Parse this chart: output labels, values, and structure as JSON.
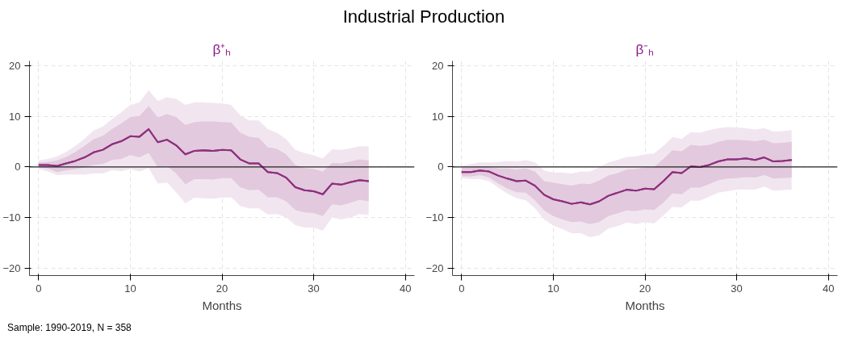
{
  "chart_data": [
    {
      "type": "line",
      "title": "β⁺ₕ",
      "xlabel": "Months",
      "annotations": [
        "Industrial Production",
        "Sample: 1990-2019, N = 358"
      ],
      "x": [
        0,
        1,
        2,
        3,
        4,
        5,
        6,
        7,
        8,
        9,
        10,
        11,
        12,
        13,
        14,
        15,
        16,
        17,
        18,
        19,
        20,
        21,
        22,
        23,
        24,
        25,
        26,
        27,
        28,
        29,
        30,
        31,
        32,
        33,
        34,
        35,
        36
      ],
      "xlim": [
        -1,
        41
      ],
      "xticks": [
        0,
        10,
        20,
        30,
        40
      ],
      "ylim": [
        -21.5,
        21
      ],
      "yticks": [
        -20,
        -10,
        0,
        10,
        20
      ],
      "grid": true,
      "ref_lines": [
        {
          "axis": "y",
          "value": 0,
          "label": null,
          "color": "#222222"
        }
      ],
      "series": [
        {
          "color": "#8e2f7e",
          "values": [
            0.4,
            0.4,
            0.2,
            0.7,
            1.2,
            1.9,
            2.9,
            3.4,
            4.5,
            5.1,
            6.1,
            6.0,
            7.5,
            4.9,
            5.4,
            4.3,
            2.5,
            3.2,
            3.3,
            3.2,
            3.4,
            3.3,
            1.5,
            0.7,
            0.7,
            -1.0,
            -1.2,
            -2.1,
            -4.0,
            -4.6,
            -4.8,
            -5.4,
            -3.3,
            -3.5,
            -3.0,
            -2.6,
            -2.8
          ],
          "upper": [
            1.3,
            1.6,
            2.1,
            3.0,
            4.2,
            5.6,
            7.2,
            8.0,
            9.5,
            10.8,
            12.3,
            12.8,
            15.2,
            13.1,
            13.8,
            13.5,
            12.3,
            12.8,
            12.8,
            12.7,
            12.6,
            12.3,
            10.2,
            9.2,
            9.2,
            7.5,
            6.8,
            5.5,
            3.4,
            2.8,
            2.3,
            1.7,
            3.5,
            3.4,
            3.7,
            4.1,
            4.1
          ],
          "lower": [
            -0.4,
            -0.9,
            -1.6,
            -1.5,
            -1.5,
            -1.5,
            -1.3,
            -1.3,
            -0.6,
            -0.8,
            -0.4,
            -0.9,
            -0.2,
            -3.3,
            -3.1,
            -5.0,
            -7.2,
            -6.1,
            -6.2,
            -6.3,
            -6.1,
            -6.0,
            -7.7,
            -8.2,
            -8.2,
            -9.4,
            -9.3,
            -10.0,
            -11.5,
            -12.0,
            -12.0,
            -12.6,
            -10.0,
            -10.4,
            -10.0,
            -9.3,
            -9.5
          ]
        },
        {
          "color": "#8e2f7e",
          "values": [
            0.4,
            0.4,
            0.2,
            0.7,
            1.2,
            1.9,
            2.9,
            3.4,
            4.5,
            5.1,
            6.1,
            6.0,
            7.5,
            4.9,
            5.4,
            4.3,
            2.5,
            3.2,
            3.3,
            3.2,
            3.4,
            3.3,
            1.5,
            0.7,
            0.7,
            -1.0,
            -1.2,
            -2.1,
            -4.0,
            -4.6,
            -4.8,
            -5.4,
            -3.3,
            -3.5,
            -3.0,
            -2.6,
            -2.8
          ],
          "upper": [
            0.9,
            1.0,
            1.3,
            2.0,
            3.0,
            4.2,
            5.5,
            6.2,
            7.5,
            8.6,
            9.9,
            10.1,
            12.1,
            9.8,
            10.5,
            9.9,
            8.3,
            8.9,
            9.0,
            9.0,
            8.9,
            8.8,
            6.8,
            6.0,
            5.8,
            3.9,
            3.6,
            2.5,
            0.4,
            -0.2,
            -0.4,
            -0.9,
            0.8,
            0.7,
            1.1,
            1.5,
            1.3
          ],
          "lower": [
            0,
            -0.3,
            -1.0,
            -0.7,
            -0.4,
            -0.1,
            0.4,
            0.6,
            1.4,
            1.6,
            2.4,
            1.9,
            2.8,
            -0.1,
            0.2,
            -1.3,
            -3.4,
            -2.4,
            -2.4,
            -2.5,
            -2.2,
            -2.2,
            -4.0,
            -4.6,
            -4.5,
            -6.0,
            -6.0,
            -6.8,
            -8.5,
            -9.0,
            -9.1,
            -9.7,
            -7.4,
            -7.6,
            -7.1,
            -6.5,
            -6.8
          ]
        }
      ]
    },
    {
      "type": "line",
      "title": "β⁻ₕ",
      "xlabel": "Months",
      "x": [
        0,
        1,
        2,
        3,
        4,
        5,
        6,
        7,
        8,
        9,
        10,
        11,
        12,
        13,
        14,
        15,
        16,
        17,
        18,
        19,
        20,
        21,
        22,
        23,
        24,
        25,
        26,
        27,
        28,
        29,
        30,
        31,
        32,
        33,
        34,
        35,
        36
      ],
      "xlim": [
        -1,
        41
      ],
      "xticks": [
        0,
        10,
        20,
        30,
        40
      ],
      "ylim": [
        -21.5,
        21
      ],
      "yticks": [
        -20,
        -10,
        0,
        10,
        20
      ],
      "grid": true,
      "ref_lines": [
        {
          "axis": "y",
          "value": 0,
          "label": null,
          "color": "#222222"
        }
      ],
      "series": [
        {
          "color": "#8e2f7e",
          "values": [
            -1.0,
            -1.0,
            -0.7,
            -0.9,
            -1.7,
            -2.3,
            -2.8,
            -2.7,
            -3.7,
            -5.5,
            -6.4,
            -6.8,
            -7.3,
            -7.0,
            -7.4,
            -6.8,
            -5.7,
            -5.1,
            -4.5,
            -4.7,
            -4.3,
            -4.4,
            -2.8,
            -1.0,
            -1.2,
            0.1,
            0.0,
            0.4,
            1.1,
            1.5,
            1.5,
            1.7,
            1.4,
            1.9,
            1.1,
            1.2,
            1.4
          ],
          "upper": [
            0.2,
            0.6,
            0.9,
            0.9,
            1.0,
            1.2,
            1.1,
            1.4,
            0.9,
            -0.7,
            -1.1,
            -1.1,
            -1.3,
            -0.9,
            -0.9,
            -0.1,
            0.9,
            1.4,
            2.0,
            2.1,
            2.5,
            2.7,
            4.2,
            5.9,
            5.6,
            6.9,
            6.8,
            7.3,
            7.7,
            7.9,
            7.8,
            7.7,
            7.4,
            7.7,
            7.0,
            7.1,
            7.3
          ],
          "lower": [
            -2.2,
            -2.4,
            -2.4,
            -2.8,
            -4.1,
            -5.3,
            -6.2,
            -6.6,
            -8.2,
            -10.4,
            -11.6,
            -12.3,
            -13.1,
            -13.1,
            -13.9,
            -13.5,
            -12.2,
            -11.7,
            -11.0,
            -11.3,
            -10.9,
            -11.2,
            -9.6,
            -7.9,
            -8.0,
            -6.7,
            -6.7,
            -5.9,
            -5.1,
            -4.8,
            -4.5,
            -4.5,
            -4.5,
            -3.9,
            -4.7,
            -4.6,
            -4.5
          ]
        },
        {
          "color": "#8e2f7e",
          "values": [
            -1.0,
            -1.0,
            -0.7,
            -0.9,
            -1.7,
            -2.3,
            -2.8,
            -2.7,
            -3.7,
            -5.5,
            -6.4,
            -6.8,
            -7.3,
            -7.0,
            -7.4,
            -6.8,
            -5.7,
            -5.1,
            -4.5,
            -4.7,
            -4.3,
            -4.4,
            -2.8,
            -1.0,
            -1.2,
            0.1,
            0.0,
            0.4,
            1.1,
            1.5,
            1.5,
            1.7,
            1.4,
            1.9,
            1.1,
            1.2,
            1.4
          ],
          "upper": [
            -0.1,
            0,
            0.1,
            0,
            -0.3,
            -0.3,
            -0.5,
            -0.3,
            -0.9,
            -2.8,
            -3.1,
            -3.4,
            -3.7,
            -3.3,
            -3.4,
            -2.7,
            -1.7,
            -1.2,
            -0.5,
            -0.4,
            -0.1,
            0.0,
            1.6,
            3.3,
            3.1,
            4.4,
            4.2,
            4.4,
            5.0,
            5.4,
            5.4,
            5.3,
            5.1,
            5.4,
            4.7,
            4.8,
            5.0
          ],
          "lower": [
            -1.8,
            -1.9,
            -1.6,
            -2.1,
            -3.3,
            -4.3,
            -5.0,
            -5.1,
            -6.6,
            -8.6,
            -9.7,
            -10.4,
            -10.9,
            -10.8,
            -11.3,
            -10.9,
            -9.7,
            -9.2,
            -8.6,
            -8.7,
            -8.4,
            -8.5,
            -7.1,
            -5.2,
            -5.4,
            -4.1,
            -4.1,
            -3.4,
            -2.6,
            -2.3,
            -2.2,
            -2.0,
            -2.1,
            -1.6,
            -2.3,
            -2.2,
            -2.1
          ]
        }
      ]
    }
  ]
}
